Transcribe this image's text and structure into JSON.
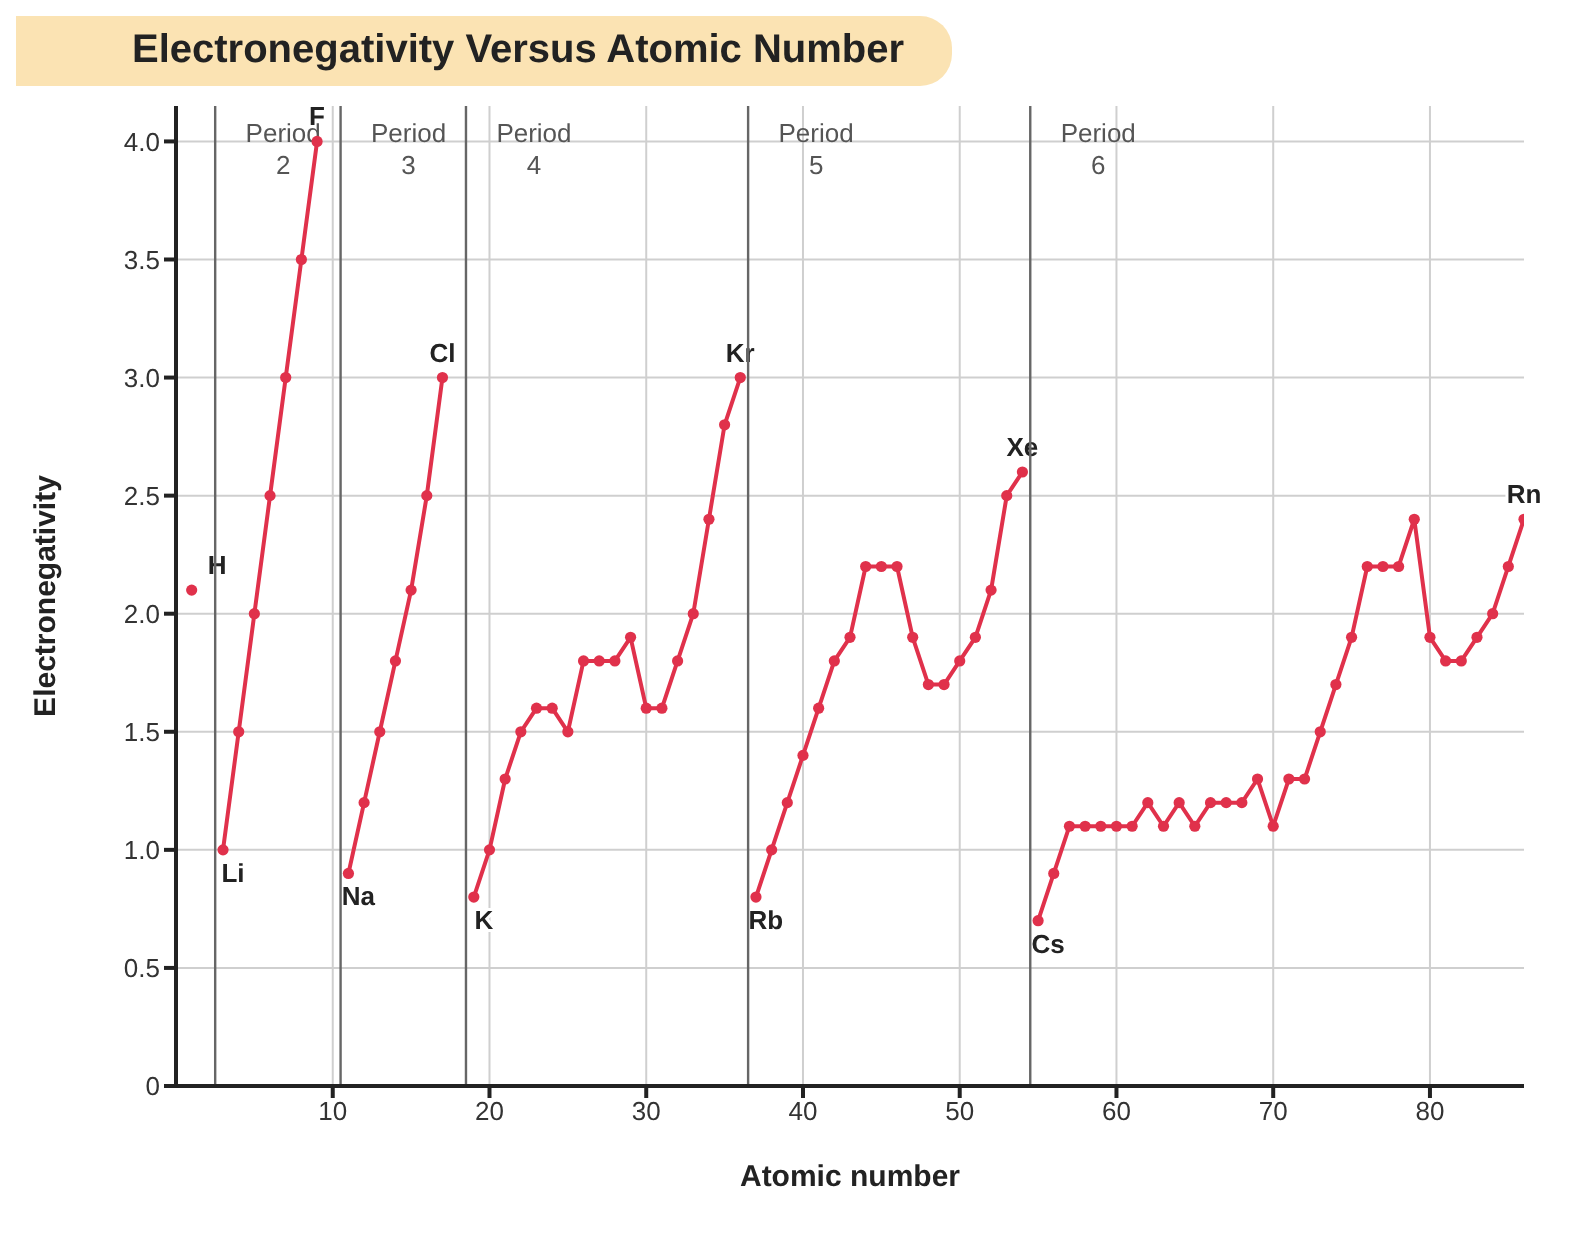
{
  "chart_data": {
    "type": "line",
    "title": "Electronegativity Versus Atomic Number",
    "xlabel": "Atomic number",
    "ylabel": "Electronegativity",
    "xlim": [
      0,
      86
    ],
    "xticks": [
      10,
      20,
      30,
      40,
      50,
      60,
      70,
      80
    ],
    "ylim": [
      0,
      4.15
    ],
    "yticks": [
      0,
      0.5,
      {
        "value": 1,
        "label": "1.0"
      },
      1.5,
      {
        "value": 2,
        "label": "2.0"
      },
      2.5,
      {
        "value": 3,
        "label": "3.0"
      },
      3.5,
      {
        "value": 4,
        "label": "4.0"
      }
    ],
    "grid": true,
    "marker": "circle",
    "line_style": "solid",
    "series": [
      {
        "color": "#e0314b",
        "x": [
          1
        ],
        "values": [
          2.1
        ]
      },
      {
        "color": "#e0314b",
        "x": [
          3,
          4,
          5,
          6,
          7,
          8,
          9
        ],
        "values": [
          1.0,
          1.5,
          2.0,
          2.5,
          3.0,
          3.5,
          4.0
        ]
      },
      {
        "color": "#e0314b",
        "x": [
          11,
          12,
          13,
          14,
          15,
          16,
          17
        ],
        "values": [
          0.9,
          1.2,
          1.5,
          1.8,
          2.1,
          2.5,
          3.0
        ]
      },
      {
        "color": "#e0314b",
        "x": [
          19,
          20,
          21,
          22,
          23,
          24,
          25,
          26,
          27,
          28,
          29,
          30,
          31,
          32,
          33,
          34,
          35,
          36
        ],
        "values": [
          0.8,
          1.0,
          1.3,
          1.5,
          1.6,
          1.6,
          1.5,
          1.8,
          1.8,
          1.8,
          1.9,
          1.6,
          1.6,
          1.8,
          2.0,
          2.4,
          2.8,
          3.0
        ]
      },
      {
        "color": "#e0314b",
        "x": [
          37,
          38,
          39,
          40,
          41,
          42,
          43,
          44,
          45,
          46,
          47,
          48,
          49,
          50,
          51,
          52,
          53,
          54
        ],
        "values": [
          0.8,
          1.0,
          1.2,
          1.4,
          1.6,
          1.8,
          1.9,
          2.2,
          2.2,
          2.2,
          1.9,
          1.7,
          1.7,
          1.8,
          1.9,
          2.1,
          2.5,
          2.6
        ]
      },
      {
        "color": "#e0314b",
        "x": [
          55,
          56,
          57,
          58,
          59,
          60,
          61,
          62,
          63,
          64,
          65,
          66,
          67,
          68,
          69,
          70,
          71,
          72,
          73,
          74,
          75,
          76,
          77,
          78,
          79,
          80,
          81,
          82,
          83,
          84,
          85,
          86
        ],
        "values": [
          0.7,
          0.9,
          1.1,
          1.1,
          1.1,
          1.1,
          1.1,
          1.2,
          1.1,
          1.2,
          1.1,
          1.2,
          1.2,
          1.2,
          1.3,
          1.1,
          1.3,
          1.3,
          1.5,
          1.7,
          1.9,
          2.2,
          2.2,
          2.2,
          2.4,
          1.9,
          1.8,
          1.8,
          1.9,
          2.0,
          2.2,
          2.4
        ]
      }
    ],
    "ref_lines": [
      {
        "axis": "x",
        "value": 2.5,
        "color": "#666666",
        "label": "Period\n2"
      },
      {
        "axis": "x",
        "value": 10.5,
        "color": "#666666",
        "label": "Period\n3"
      },
      {
        "axis": "x",
        "value": 18.5,
        "color": "#666666",
        "label": "Period\n4"
      },
      {
        "axis": "x",
        "value": 36.5,
        "color": "#666666",
        "label": "Period\n5"
      },
      {
        "axis": "x",
        "value": 54.5,
        "color": "#666666",
        "label": "Period\n6"
      }
    ],
    "annotations": [
      {
        "text": "H",
        "x": 1,
        "y": 2.1
      },
      {
        "text": "Li",
        "x": 3,
        "y": 1.0
      },
      {
        "text": "F",
        "x": 9,
        "y": 4.0
      },
      {
        "text": "Na",
        "x": 11,
        "y": 0.9
      },
      {
        "text": "Cl",
        "x": 17,
        "y": 3.0
      },
      {
        "text": "K",
        "x": 19,
        "y": 0.8
      },
      {
        "text": "Kr",
        "x": 36,
        "y": 3.0
      },
      {
        "text": "Rb",
        "x": 37,
        "y": 0.8
      },
      {
        "text": "Xe",
        "x": 54,
        "y": 2.6
      },
      {
        "text": "Cs",
        "x": 55,
        "y": 0.7
      },
      {
        "text": "Rn",
        "x": 86,
        "y": 2.4
      }
    ]
  }
}
